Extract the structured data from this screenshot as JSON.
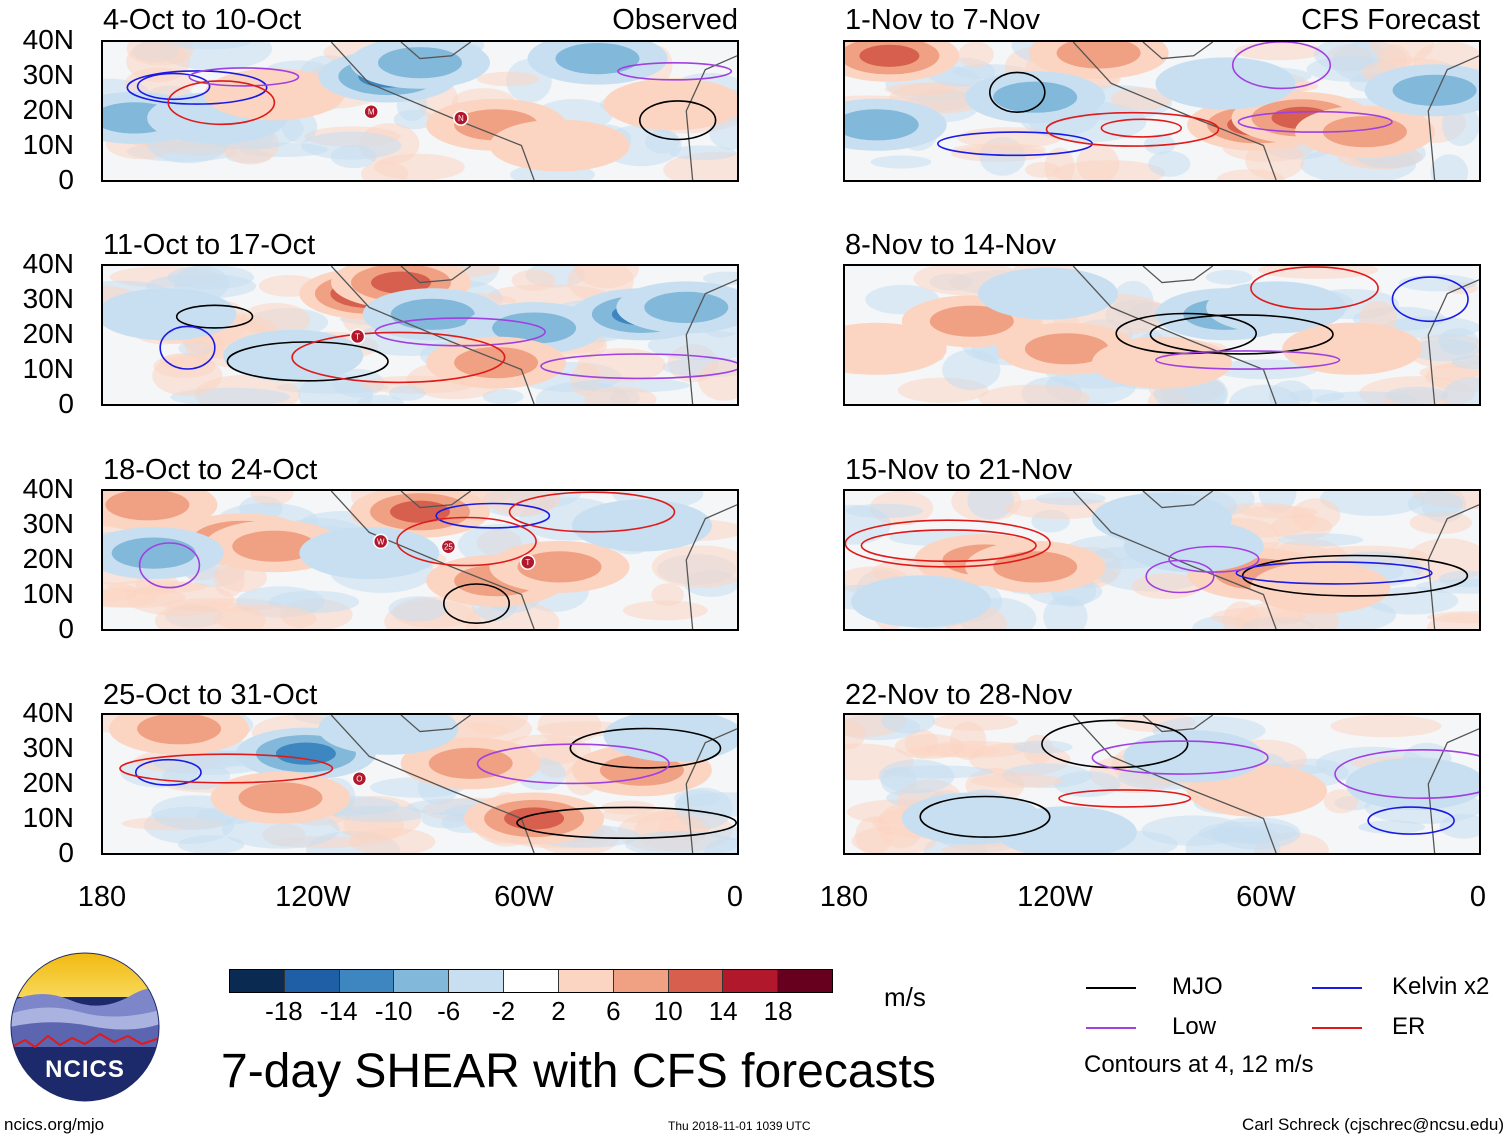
{
  "figure_title": "7-day SHEAR with CFS forecasts",
  "footer": {
    "site": "ncics.org/mjo",
    "timestamp": "Thu 2018-11-01 1039 UTC",
    "author": "Carl Schreck (cjschrec@ncsu.edu)"
  },
  "logo": {
    "text": "NCICS"
  },
  "units_label": "m/s",
  "contour_note": "Contours at 4, 12 m/s",
  "colors": {
    "mjo": "#000000",
    "kelvin": "#1a1ae6",
    "low": "#a040e0",
    "er": "#e01a1a"
  },
  "chart_data": {
    "type": "heatmap",
    "title": "7-day SHEAR with CFS forecasts",
    "x_tick_labels": [
      "180",
      "120W",
      "60W",
      "0"
    ],
    "y_tick_labels": [
      "40N",
      "30N",
      "20N",
      "10N",
      "0"
    ],
    "xlim_deg_west": [
      180,
      0
    ],
    "ylim_deg_north": [
      0,
      40
    ],
    "colorbar": {
      "units": "m/s",
      "tick_labels": [
        "-18",
        "-14",
        "-10",
        "-6",
        "-2",
        "2",
        "6",
        "10",
        "14",
        "18"
      ],
      "colors": [
        "#0a2a52",
        "#1f5fa6",
        "#3d86c0",
        "#82b8d9",
        "#c7dff0",
        "#ffffff",
        "#fbd5c2",
        "#f1a183",
        "#d6604d",
        "#b2182b",
        "#67001f"
      ]
    },
    "legend": {
      "position": "bottom-right",
      "entries": [
        {
          "name": "MJO",
          "color": "#000000"
        },
        {
          "name": "Kelvin x2",
          "color": "#1a1ae6"
        },
        {
          "name": "Low",
          "color": "#a040e0"
        },
        {
          "name": "ER",
          "color": "#e01a1a"
        }
      ]
    },
    "panels": [
      {
        "id": "obs1",
        "title": "4-Oct to 10-Oct",
        "tag": "Observed",
        "column": "left",
        "row": 0,
        "storms": [
          "M",
          "N"
        ]
      },
      {
        "id": "obs2",
        "title": "11-Oct to 17-Oct",
        "tag": "",
        "column": "left",
        "row": 1,
        "storms": [
          "T"
        ]
      },
      {
        "id": "obs3",
        "title": "18-Oct to 24-Oct",
        "tag": "",
        "column": "left",
        "row": 2,
        "storms": [
          "W",
          "25",
          "T"
        ]
      },
      {
        "id": "obs4",
        "title": "25-Oct to 31-Oct",
        "tag": "",
        "column": "left",
        "row": 3,
        "storms": [
          "O"
        ]
      },
      {
        "id": "fc1",
        "title": "1-Nov to 7-Nov",
        "tag": "CFS Forecast",
        "column": "right",
        "row": 0,
        "storms": []
      },
      {
        "id": "fc2",
        "title": "8-Nov to 14-Nov",
        "tag": "",
        "column": "right",
        "row": 1,
        "storms": []
      },
      {
        "id": "fc3",
        "title": "15-Nov to 21-Nov",
        "tag": "",
        "column": "right",
        "row": 2,
        "storms": []
      },
      {
        "id": "fc4",
        "title": "22-Nov to 28-Nov",
        "tag": "",
        "column": "right",
        "row": 3,
        "storms": []
      }
    ]
  }
}
